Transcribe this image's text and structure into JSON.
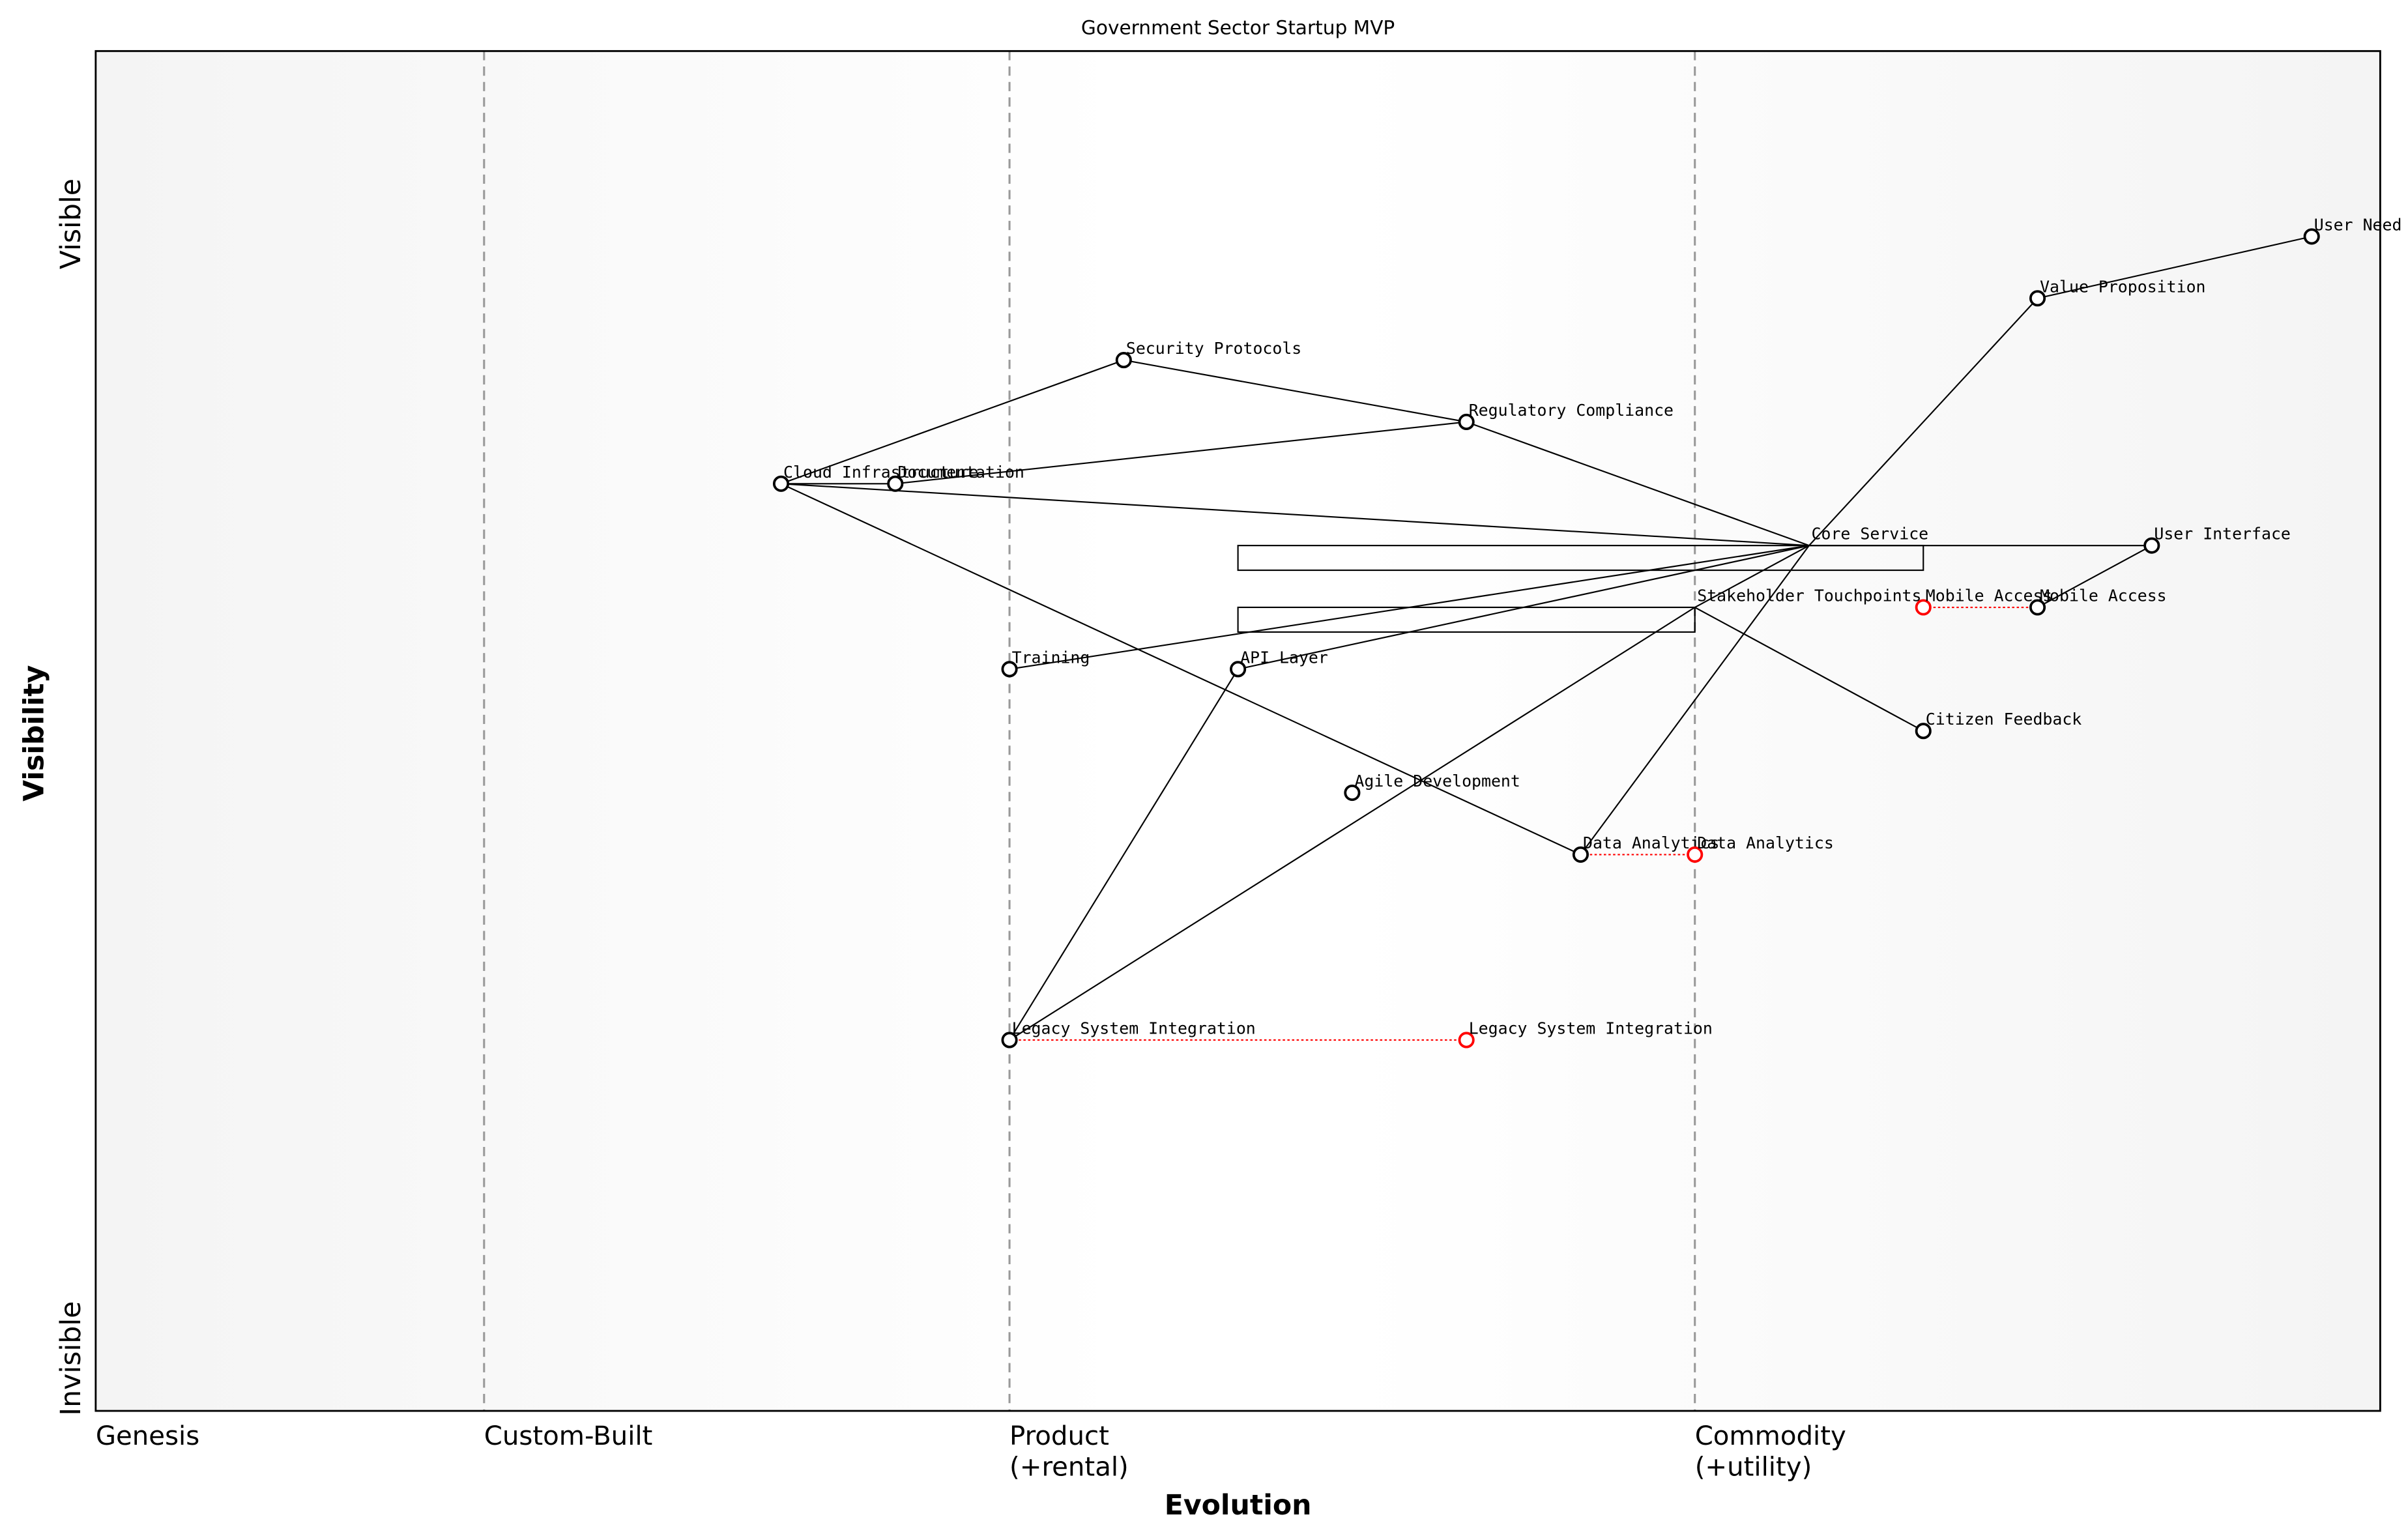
{
  "chart_data": {
    "type": "wardley",
    "title": "Government Sector Startup MVP",
    "x_label": "Evolution",
    "y_label": "Visibility",
    "y_top_label": "Visible",
    "y_bottom_label": "Invisible",
    "xlim": [
      0,
      1
    ],
    "ylim": [
      0,
      1.1
    ],
    "xticks": [
      {
        "value": 0,
        "label": "Genesis"
      },
      {
        "value": 0.17,
        "label": "Custom-Built"
      },
      {
        "value": 0.4,
        "label": "Product\n(+rental)"
      },
      {
        "value": 0.7,
        "label": "Commodity\n(+utility)"
      }
    ],
    "nodes": [
      {
        "name": "User Need",
        "x": 0.97,
        "y": 0.95
      },
      {
        "name": "Value Proposition",
        "x": 0.85,
        "y": 0.9
      },
      {
        "name": "Security Protocols",
        "x": 0.45,
        "y": 0.85
      },
      {
        "name": "Regulatory Compliance",
        "x": 0.6,
        "y": 0.8
      },
      {
        "name": "Cloud Infrastructure",
        "x": 0.3,
        "y": 0.75
      },
      {
        "name": "Documentation",
        "x": 0.35,
        "y": 0.75
      },
      {
        "name": "Core Service",
        "x": 0.75,
        "y": 0.7,
        "pipeline": [
          0.5,
          0.8
        ]
      },
      {
        "name": "User Interface",
        "x": 0.9,
        "y": 0.7
      },
      {
        "name": "Stakeholder Touchpoints",
        "x": 0.7,
        "y": 0.65,
        "pipeline": [
          0.5,
          0.7
        ]
      },
      {
        "name": "Mobile Access",
        "x": 0.85,
        "y": 0.65
      },
      {
        "name": "Training",
        "x": 0.4,
        "y": 0.6
      },
      {
        "name": "API Layer",
        "x": 0.5,
        "y": 0.6
      },
      {
        "name": "Citizen Feedback",
        "x": 0.8,
        "y": 0.55
      },
      {
        "name": "Agile Development",
        "x": 0.55,
        "y": 0.5
      },
      {
        "name": "Data Analytics",
        "x": 0.65,
        "y": 0.45
      },
      {
        "name": "Legacy System Integration",
        "x": 0.4,
        "y": 0.3
      }
    ],
    "evolved": [
      {
        "name": "Mobile Access",
        "x": 0.8,
        "y": 0.65
      },
      {
        "name": "Data Analytics",
        "x": 0.7,
        "y": 0.45
      },
      {
        "name": "Legacy System Integration",
        "x": 0.6,
        "y": 0.3
      }
    ],
    "links": [
      [
        "Value Proposition",
        "User Need"
      ],
      [
        "Core Service",
        "Value Proposition"
      ],
      [
        "Core Service",
        "User Interface"
      ],
      [
        "User Interface",
        "Mobile Access"
      ],
      [
        "Core Service",
        "Regulatory Compliance"
      ],
      [
        "Regulatory Compliance",
        "Security Protocols"
      ],
      [
        "Security Protocols",
        "Cloud Infrastructure"
      ],
      [
        "Documentation",
        "Regulatory Compliance"
      ],
      [
        "Cloud Infrastructure",
        "Documentation"
      ],
      [
        "Cloud Infrastructure",
        "Core Service"
      ],
      [
        "Cloud Infrastructure",
        "Data Analytics"
      ],
      [
        "Data Analytics",
        "Core Service"
      ],
      [
        "Training",
        "Core Service"
      ],
      [
        "API Layer",
        "Core Service"
      ],
      [
        "API Layer",
        "Legacy System Integration"
      ],
      [
        "Legacy System Integration",
        "Stakeholder Touchpoints"
      ],
      [
        "Stakeholder Touchpoints",
        "Core Service"
      ],
      [
        "Stakeholder Touchpoints",
        "Citizen Feedback"
      ]
    ]
  }
}
